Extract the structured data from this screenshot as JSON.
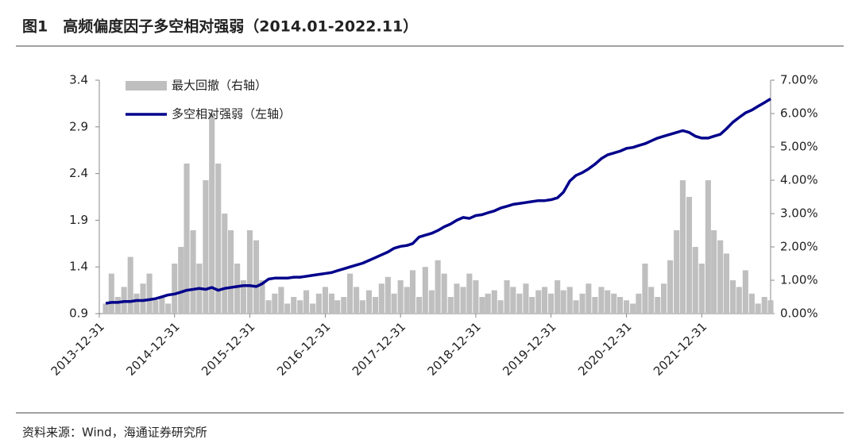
{
  "chart_data": {
    "type": "combo",
    "title": "图1　高频偏度因子多空相对强弱（2014.01-2022.11）",
    "source": "资料来源：Wind，海通证券研究所",
    "xlim": [
      "2013-12-31",
      "2022-11-30"
    ],
    "xticks": [
      "2013-12-31",
      "2014-12-31",
      "2015-12-31",
      "2016-12-31",
      "2017-12-31",
      "2018-12-31",
      "2019-12-31",
      "2020-12-31",
      "2021-12-31"
    ],
    "ylim": [
      0.9,
      3.4
    ],
    "yticks": [
      0.9,
      1.4,
      1.9,
      2.4,
      2.9,
      3.4
    ],
    "y2lim": [
      0,
      7
    ],
    "y2ticks": [
      {
        "value": 0,
        "label": "0.00%"
      },
      {
        "value": 1,
        "label": "1.00%"
      },
      {
        "value": 2,
        "label": "2.00%"
      },
      {
        "value": 3,
        "label": "3.00%"
      },
      {
        "value": 4,
        "label": "4.00%"
      },
      {
        "value": 5,
        "label": "5.00%"
      },
      {
        "value": 6,
        "label": "6.00%"
      },
      {
        "value": 7,
        "label": "7.00%"
      }
    ],
    "legend": "top-left",
    "x": [
      "2014-01-31",
      "2014-02-28",
      "2014-03-31",
      "2014-04-30",
      "2014-05-31",
      "2014-06-30",
      "2014-07-31",
      "2014-08-31",
      "2014-09-30",
      "2014-10-31",
      "2014-11-30",
      "2014-12-31",
      "2015-01-31",
      "2015-02-28",
      "2015-03-31",
      "2015-04-30",
      "2015-05-31",
      "2015-06-30",
      "2015-07-31",
      "2015-08-31",
      "2015-09-30",
      "2015-10-31",
      "2015-11-30",
      "2015-12-31",
      "2016-01-31",
      "2016-02-29",
      "2016-03-31",
      "2016-04-30",
      "2016-05-31",
      "2016-06-30",
      "2016-07-31",
      "2016-08-31",
      "2016-09-30",
      "2016-10-31",
      "2016-11-30",
      "2016-12-31",
      "2017-01-31",
      "2017-02-28",
      "2017-03-31",
      "2017-04-30",
      "2017-05-31",
      "2017-06-30",
      "2017-07-31",
      "2017-08-31",
      "2017-09-30",
      "2017-10-31",
      "2017-11-30",
      "2017-12-31",
      "2018-01-31",
      "2018-02-28",
      "2018-03-31",
      "2018-04-30",
      "2018-05-31",
      "2018-06-30",
      "2018-07-31",
      "2018-08-31",
      "2018-09-30",
      "2018-10-31",
      "2018-11-30",
      "2018-12-31",
      "2019-01-31",
      "2019-02-28",
      "2019-03-31",
      "2019-04-30",
      "2019-05-31",
      "2019-06-30",
      "2019-07-31",
      "2019-08-31",
      "2019-09-30",
      "2019-10-31",
      "2019-11-30",
      "2019-12-31",
      "2020-01-31",
      "2020-02-29",
      "2020-03-31",
      "2020-04-30",
      "2020-05-31",
      "2020-06-30",
      "2020-07-31",
      "2020-08-31",
      "2020-09-30",
      "2020-10-31",
      "2020-11-30",
      "2020-12-31",
      "2021-01-31",
      "2021-02-28",
      "2021-03-31",
      "2021-04-30",
      "2021-05-31",
      "2021-06-30",
      "2021-07-31",
      "2021-08-31",
      "2021-09-30",
      "2021-10-31",
      "2021-11-30",
      "2021-12-31",
      "2022-01-31",
      "2022-02-28",
      "2022-03-31",
      "2022-04-30",
      "2022-05-31",
      "2022-06-30",
      "2022-07-31",
      "2022-08-31",
      "2022-09-30",
      "2022-10-31",
      "2022-11-30"
    ],
    "series": [
      {
        "name": "最大回撤（右轴）",
        "type": "bar",
        "axis": "y2",
        "color": "#bfbfbf",
        "values": [
          0.3,
          1.2,
          0.5,
          0.8,
          1.7,
          0.6,
          0.9,
          1.2,
          0.4,
          0.5,
          0.3,
          1.5,
          2.0,
          4.5,
          2.5,
          1.5,
          4.0,
          6.0,
          4.5,
          3.0,
          2.5,
          1.5,
          1.0,
          2.5,
          2.2,
          1.0,
          0.4,
          0.6,
          0.8,
          0.3,
          0.5,
          0.4,
          0.7,
          0.3,
          0.6,
          0.8,
          0.6,
          0.4,
          0.5,
          1.2,
          0.8,
          0.4,
          0.7,
          0.5,
          0.9,
          1.1,
          0.6,
          1.0,
          0.8,
          1.3,
          0.5,
          1.4,
          0.7,
          1.6,
          1.2,
          0.5,
          0.9,
          0.8,
          1.2,
          1.0,
          0.5,
          0.6,
          0.7,
          0.4,
          1.0,
          0.8,
          0.6,
          0.9,
          0.5,
          0.7,
          0.8,
          0.6,
          1.0,
          0.7,
          0.8,
          0.4,
          0.6,
          0.9,
          0.5,
          0.8,
          0.7,
          0.6,
          0.5,
          0.4,
          0.3,
          0.6,
          1.5,
          0.8,
          0.5,
          0.9,
          1.6,
          2.5,
          4.0,
          3.5,
          2.0,
          1.5,
          4.0,
          2.5,
          2.2,
          1.8,
          1.0,
          0.8,
          1.3,
          0.6,
          0.3,
          0.5,
          0.4
        ]
      },
      {
        "name": "多空相对强弱（左轴）",
        "type": "line",
        "axis": "y",
        "color": "#00008b",
        "values": [
          1.01,
          1.02,
          1.02,
          1.03,
          1.03,
          1.04,
          1.04,
          1.05,
          1.06,
          1.08,
          1.1,
          1.11,
          1.13,
          1.15,
          1.16,
          1.17,
          1.16,
          1.18,
          1.15,
          1.17,
          1.18,
          1.19,
          1.2,
          1.2,
          1.19,
          1.22,
          1.27,
          1.28,
          1.28,
          1.28,
          1.29,
          1.29,
          1.3,
          1.31,
          1.32,
          1.33,
          1.34,
          1.36,
          1.38,
          1.4,
          1.42,
          1.44,
          1.47,
          1.5,
          1.53,
          1.56,
          1.6,
          1.62,
          1.63,
          1.65,
          1.72,
          1.74,
          1.76,
          1.79,
          1.83,
          1.86,
          1.9,
          1.93,
          1.92,
          1.95,
          1.96,
          1.98,
          2.0,
          2.03,
          2.05,
          2.07,
          2.08,
          2.09,
          2.1,
          2.11,
          2.11,
          2.12,
          2.14,
          2.2,
          2.32,
          2.38,
          2.41,
          2.45,
          2.5,
          2.56,
          2.6,
          2.62,
          2.64,
          2.67,
          2.68,
          2.7,
          2.72,
          2.75,
          2.78,
          2.8,
          2.82,
          2.84,
          2.86,
          2.84,
          2.8,
          2.78,
          2.78,
          2.8,
          2.82,
          2.88,
          2.95,
          3.0,
          3.05,
          3.08,
          3.12,
          3.16,
          3.2
        ]
      }
    ]
  }
}
